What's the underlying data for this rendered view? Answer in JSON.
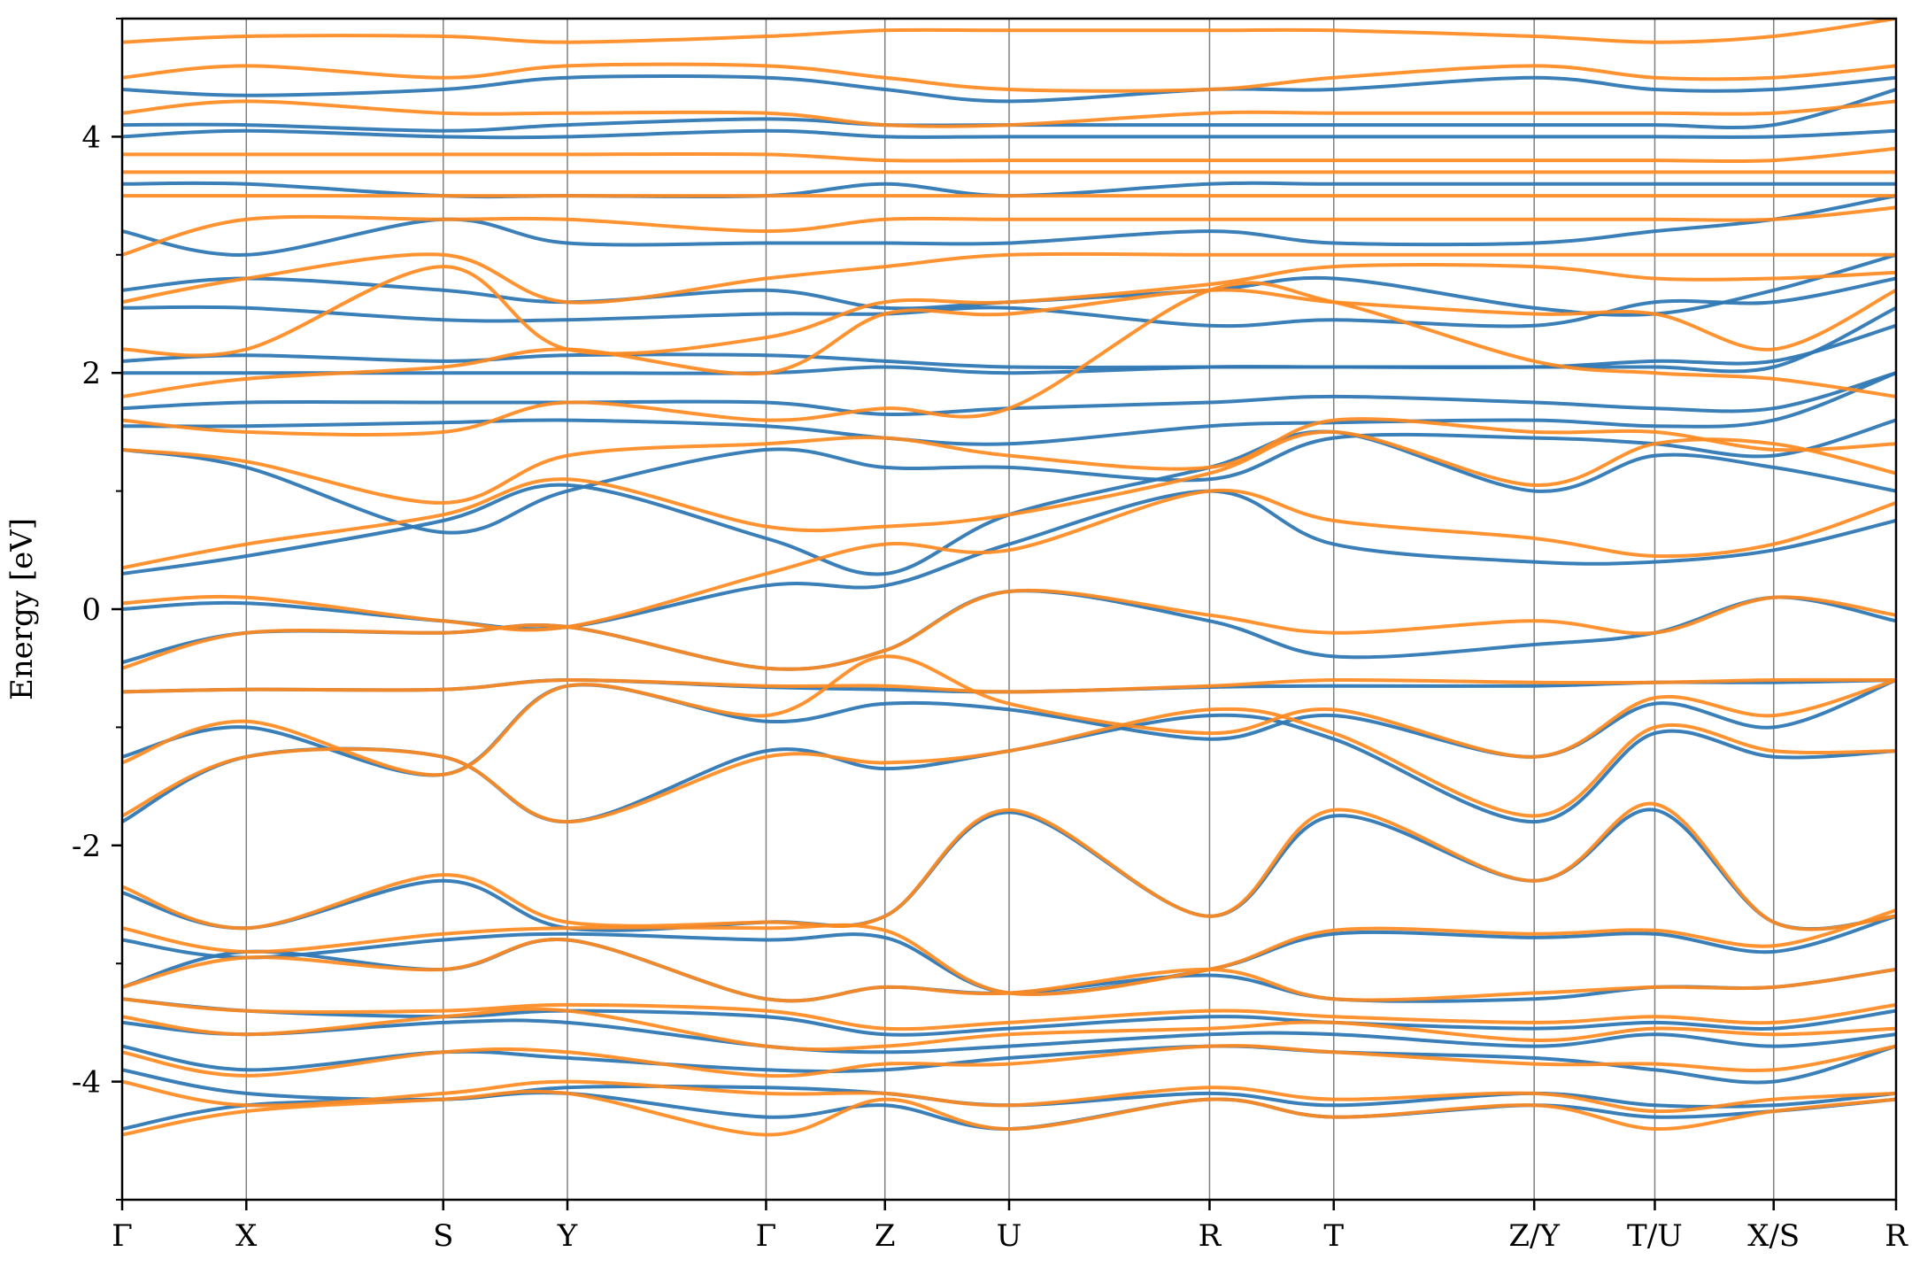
{
  "chart_data": {
    "type": "line",
    "ylabel": "Energy [eV]",
    "xlabel": "",
    "ylim": [
      -5,
      5
    ],
    "grid": false,
    "legend": null,
    "colors": {
      "series_a": "#2f78b4",
      "series_b": "#ff8a1f",
      "kpath_line": "#808080"
    },
    "y_ticks": [
      {
        "value": 4,
        "label": "4"
      },
      {
        "value": 2,
        "label": "2"
      },
      {
        "value": 0,
        "label": "0"
      },
      {
        "value": -2,
        "label": "-2"
      },
      {
        "value": -4,
        "label": "-4"
      }
    ],
    "y_minor_ticks": [
      5,
      3,
      1,
      -1,
      -3,
      -5
    ],
    "kpoints": [
      {
        "x": 0.0,
        "label": "Γ"
      },
      {
        "x": 0.07,
        "label": "X"
      },
      {
        "x": 0.181,
        "label": "S"
      },
      {
        "x": 0.251,
        "label": "Y"
      },
      {
        "x": 0.363,
        "label": "Γ"
      },
      {
        "x": 0.43,
        "label": "Z"
      },
      {
        "x": 0.5,
        "label": "U"
      },
      {
        "x": 0.613,
        "label": "R"
      },
      {
        "x": 0.683,
        "label": "T"
      },
      {
        "x": 0.796,
        "label": "Z/Y"
      },
      {
        "x": 0.864,
        "label": "T/U"
      },
      {
        "x": 0.931,
        "label": "X/S"
      },
      {
        "x": 1.0,
        "label": "R"
      }
    ],
    "series": [
      {
        "bands": [
          [
            -4.4,
            -4.2,
            -4.15,
            -4.1,
            -4.3,
            -4.2,
            -4.4,
            -4.15,
            -4.3,
            -4.2,
            -4.3,
            -4.25,
            -4.15
          ],
          [
            -3.9,
            -4.1,
            -4.15,
            -4.05,
            -4.05,
            -4.1,
            -4.2,
            -4.1,
            -4.2,
            -4.1,
            -4.2,
            -4.2,
            -4.1
          ],
          [
            -3.7,
            -3.9,
            -3.75,
            -3.8,
            -3.9,
            -3.9,
            -3.8,
            -3.7,
            -3.75,
            -3.8,
            -3.9,
            -4.0,
            -3.7
          ],
          [
            -3.5,
            -3.6,
            -3.5,
            -3.5,
            -3.7,
            -3.75,
            -3.7,
            -3.6,
            -3.6,
            -3.7,
            -3.6,
            -3.7,
            -3.6
          ],
          [
            -3.3,
            -3.4,
            -3.45,
            -3.4,
            -3.45,
            -3.6,
            -3.55,
            -3.45,
            -3.5,
            -3.55,
            -3.5,
            -3.55,
            -3.4
          ],
          [
            -3.2,
            -2.9,
            -3.05,
            -2.8,
            -3.3,
            -3.2,
            -3.25,
            -3.1,
            -3.3,
            -3.3,
            -3.2,
            -3.2,
            -3.05
          ],
          [
            -2.8,
            -2.95,
            -2.8,
            -2.75,
            -2.8,
            -2.78,
            -3.25,
            -3.05,
            -2.75,
            -2.78,
            -2.75,
            -2.9,
            -2.6
          ],
          [
            -2.4,
            -2.7,
            -2.3,
            -2.7,
            -2.65,
            -2.6,
            -1.72,
            -2.6,
            -1.75,
            -2.3,
            -1.7,
            -2.65,
            -2.6
          ],
          [
            -1.8,
            -1.25,
            -1.25,
            -1.8,
            -1.2,
            -1.35,
            -1.2,
            -0.9,
            -1.1,
            -1.8,
            -1.05,
            -1.25,
            -1.2
          ],
          [
            -1.25,
            -1.0,
            -1.4,
            -0.65,
            -0.95,
            -0.8,
            -0.85,
            -1.1,
            -0.9,
            -1.25,
            -0.8,
            -1.0,
            -0.6
          ],
          [
            -0.7,
            -0.68,
            -0.68,
            -0.6,
            -0.66,
            -0.68,
            -0.7,
            -0.66,
            -0.65,
            -0.65,
            -0.62,
            -0.62,
            -0.6
          ],
          [
            -0.45,
            -0.2,
            -0.2,
            -0.15,
            -0.5,
            -0.35,
            0.15,
            -0.1,
            -0.4,
            -0.3,
            -0.2,
            0.1,
            -0.1
          ],
          [
            0.0,
            0.05,
            -0.1,
            -0.15,
            0.2,
            0.2,
            0.55,
            1.0,
            0.55,
            0.4,
            0.4,
            0.5,
            0.75
          ],
          [
            0.3,
            0.45,
            0.75,
            1.05,
            0.6,
            0.3,
            0.8,
            1.2,
            1.5,
            1.0,
            1.3,
            1.2,
            1.0
          ],
          [
            1.35,
            1.2,
            0.65,
            1.0,
            1.35,
            1.2,
            1.2,
            1.1,
            1.45,
            1.45,
            1.4,
            1.3,
            1.6
          ],
          [
            1.55,
            1.55,
            1.58,
            1.6,
            1.55,
            1.45,
            1.4,
            1.55,
            1.58,
            1.6,
            1.55,
            1.6,
            2.0
          ],
          [
            1.7,
            1.75,
            1.75,
            1.75,
            1.75,
            1.65,
            1.7,
            1.75,
            1.8,
            1.75,
            1.7,
            1.7,
            2.0
          ],
          [
            2.0,
            2.0,
            2.0,
            2.0,
            2.0,
            2.05,
            2.0,
            2.05,
            2.05,
            2.05,
            2.1,
            2.1,
            2.4
          ],
          [
            2.1,
            2.15,
            2.1,
            2.15,
            2.15,
            2.1,
            2.05,
            2.05,
            2.05,
            2.05,
            2.05,
            2.05,
            2.55
          ],
          [
            2.55,
            2.55,
            2.45,
            2.45,
            2.5,
            2.5,
            2.55,
            2.4,
            2.45,
            2.4,
            2.6,
            2.6,
            2.8
          ],
          [
            2.7,
            2.8,
            2.7,
            2.6,
            2.7,
            2.55,
            2.6,
            2.7,
            2.8,
            2.55,
            2.5,
            2.7,
            3.0
          ],
          [
            3.2,
            3.0,
            3.3,
            3.1,
            3.1,
            3.1,
            3.1,
            3.2,
            3.1,
            3.1,
            3.2,
            3.3,
            3.5
          ],
          [
            3.6,
            3.6,
            3.5,
            3.5,
            3.5,
            3.6,
            3.5,
            3.6,
            3.6,
            3.6,
            3.6,
            3.6,
            3.6
          ],
          [
            4.0,
            4.05,
            4.0,
            4.0,
            4.05,
            4.0,
            4.0,
            4.0,
            4.0,
            4.0,
            4.0,
            4.0,
            4.05
          ],
          [
            4.1,
            4.1,
            4.05,
            4.1,
            4.15,
            4.1,
            4.1,
            4.1,
            4.1,
            4.1,
            4.1,
            4.1,
            4.4
          ],
          [
            4.4,
            4.35,
            4.4,
            4.5,
            4.5,
            4.4,
            4.3,
            4.4,
            4.4,
            4.5,
            4.4,
            4.4,
            4.5
          ]
        ]
      },
      {
        "bands": [
          [
            -4.45,
            -4.25,
            -4.15,
            -4.1,
            -4.45,
            -4.15,
            -4.4,
            -4.15,
            -4.3,
            -4.2,
            -4.4,
            -4.25,
            -4.15
          ],
          [
            -4.0,
            -4.2,
            -4.1,
            -4.0,
            -4.1,
            -4.1,
            -4.2,
            -4.05,
            -4.15,
            -4.1,
            -4.25,
            -4.15,
            -4.1
          ],
          [
            -3.75,
            -3.95,
            -3.75,
            -3.75,
            -3.95,
            -3.85,
            -3.85,
            -3.7,
            -3.75,
            -3.85,
            -3.85,
            -3.9,
            -3.7
          ],
          [
            -3.45,
            -3.6,
            -3.45,
            -3.4,
            -3.7,
            -3.7,
            -3.6,
            -3.55,
            -3.5,
            -3.65,
            -3.55,
            -3.6,
            -3.55
          ],
          [
            -3.3,
            -3.4,
            -3.4,
            -3.35,
            -3.4,
            -3.55,
            -3.5,
            -3.4,
            -3.45,
            -3.5,
            -3.45,
            -3.5,
            -3.35
          ],
          [
            -3.2,
            -2.95,
            -3.05,
            -2.8,
            -3.3,
            -3.2,
            -3.25,
            -3.05,
            -3.3,
            -3.25,
            -3.2,
            -3.2,
            -3.05
          ],
          [
            -2.7,
            -2.9,
            -2.75,
            -2.7,
            -2.7,
            -2.72,
            -3.25,
            -3.05,
            -2.72,
            -2.75,
            -2.72,
            -2.85,
            -2.55
          ],
          [
            -2.35,
            -2.7,
            -2.25,
            -2.65,
            -2.65,
            -2.6,
            -1.7,
            -2.6,
            -1.7,
            -2.3,
            -1.65,
            -2.65,
            -2.6
          ],
          [
            -1.75,
            -1.25,
            -1.25,
            -1.8,
            -1.25,
            -1.3,
            -1.2,
            -0.85,
            -1.05,
            -1.75,
            -1.0,
            -1.2,
            -1.2
          ],
          [
            -1.3,
            -0.95,
            -1.4,
            -0.65,
            -0.9,
            -0.4,
            -0.8,
            -1.05,
            -0.85,
            -1.25,
            -0.75,
            -0.9,
            -0.6
          ],
          [
            -0.7,
            -0.68,
            -0.68,
            -0.6,
            -0.65,
            -0.65,
            -0.7,
            -0.65,
            -0.6,
            -0.62,
            -0.62,
            -0.6,
            -0.6
          ],
          [
            -0.5,
            -0.2,
            -0.2,
            -0.15,
            -0.5,
            -0.35,
            0.15,
            -0.05,
            -0.2,
            -0.1,
            -0.2,
            0.1,
            -0.05
          ],
          [
            0.05,
            0.1,
            -0.1,
            -0.15,
            0.3,
            0.55,
            0.5,
            1.0,
            0.75,
            0.6,
            0.45,
            0.55,
            0.9
          ],
          [
            0.35,
            0.55,
            0.8,
            1.1,
            0.7,
            0.7,
            0.8,
            1.15,
            1.5,
            1.05,
            1.4,
            1.4,
            1.15
          ],
          [
            1.35,
            1.25,
            0.9,
            1.3,
            1.4,
            1.45,
            1.3,
            1.2,
            1.6,
            1.5,
            1.5,
            1.35,
            1.4
          ],
          [
            1.6,
            1.5,
            1.5,
            1.75,
            1.6,
            1.7,
            1.7,
            2.7,
            2.6,
            2.1,
            2.0,
            1.95,
            1.8
          ],
          [
            1.8,
            1.95,
            2.05,
            2.2,
            2.0,
            2.5,
            2.5,
            2.7,
            2.6,
            2.5,
            2.5,
            2.2,
            2.7
          ],
          [
            2.2,
            2.2,
            2.9,
            2.2,
            2.3,
            2.6,
            2.6,
            2.75,
            2.9,
            2.9,
            2.8,
            2.8,
            2.85
          ],
          [
            2.6,
            2.8,
            3.0,
            2.6,
            2.8,
            2.9,
            3.0,
            3.0,
            3.0,
            3.0,
            3.0,
            3.0,
            3.0
          ],
          [
            3.0,
            3.3,
            3.3,
            3.3,
            3.2,
            3.3,
            3.3,
            3.3,
            3.3,
            3.3,
            3.3,
            3.3,
            3.4
          ],
          [
            3.5,
            3.5,
            3.5,
            3.5,
            3.5,
            3.5,
            3.5,
            3.5,
            3.5,
            3.5,
            3.5,
            3.5,
            3.5
          ],
          [
            3.7,
            3.7,
            3.7,
            3.7,
            3.7,
            3.7,
            3.7,
            3.7,
            3.7,
            3.7,
            3.7,
            3.7,
            3.7
          ],
          [
            3.85,
            3.85,
            3.85,
            3.85,
            3.85,
            3.8,
            3.8,
            3.8,
            3.8,
            3.8,
            3.8,
            3.8,
            3.9
          ],
          [
            4.2,
            4.3,
            4.2,
            4.2,
            4.2,
            4.1,
            4.1,
            4.2,
            4.2,
            4.2,
            4.2,
            4.2,
            4.3
          ],
          [
            4.5,
            4.6,
            4.5,
            4.6,
            4.6,
            4.5,
            4.4,
            4.4,
            4.5,
            4.6,
            4.5,
            4.5,
            4.6
          ],
          [
            4.8,
            4.85,
            4.85,
            4.8,
            4.85,
            4.9,
            4.9,
            4.9,
            4.9,
            4.85,
            4.8,
            4.85,
            5.0
          ]
        ]
      }
    ]
  }
}
